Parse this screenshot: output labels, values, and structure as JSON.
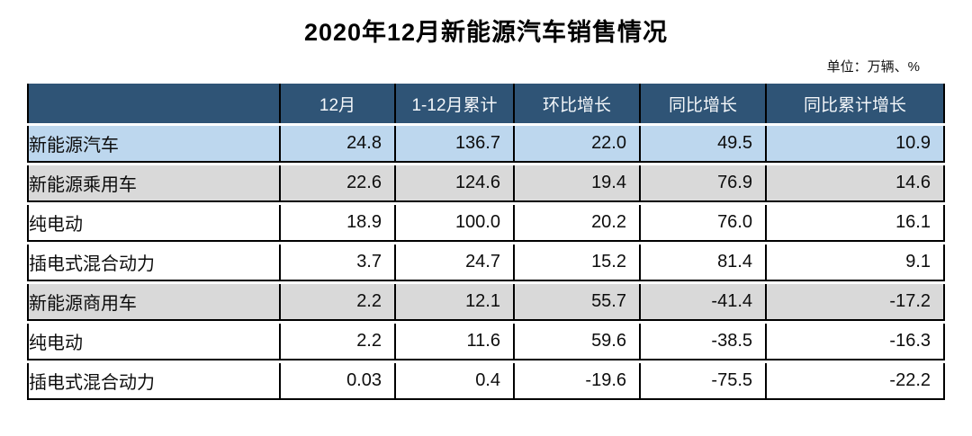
{
  "title": "2020年12月新能源汽车销售情况",
  "unit_note": "单位：万辆、%",
  "colors": {
    "header_bg": "#2F5476",
    "header_text": "#F4F7FA",
    "row_blue": "#BDD7EE",
    "row_gray": "#D9D9D9",
    "row_white": "#FFFFFF",
    "border": "#000000"
  },
  "table": {
    "columns": [
      "",
      "12月",
      "1-12月累计",
      "环比增长",
      "同比增长",
      "同比累计增长"
    ],
    "rows": [
      {
        "label": "新能源汽车",
        "indent": 1,
        "style": "blue",
        "values": [
          "24.8",
          "136.7",
          "22.0",
          "49.5",
          "10.9"
        ]
      },
      {
        "label": "新能源乘用车",
        "indent": 2,
        "style": "gray",
        "values": [
          "22.6",
          "124.6",
          "19.4",
          "76.9",
          "14.6"
        ]
      },
      {
        "label": "纯电动",
        "indent": 3,
        "style": "white",
        "values": [
          "18.9",
          "100.0",
          "20.2",
          "76.0",
          "16.1"
        ]
      },
      {
        "label": "插电式混合动力",
        "indent": 3,
        "style": "white",
        "values": [
          "3.7",
          "24.7",
          "15.2",
          "81.4",
          "9.1"
        ]
      },
      {
        "label": "新能源商用车",
        "indent": 2,
        "style": "gray",
        "values": [
          "2.2",
          "12.1",
          "55.7",
          "-41.4",
          "-17.2"
        ]
      },
      {
        "label": "纯电动",
        "indent": 3,
        "style": "white",
        "values": [
          "2.2",
          "11.6",
          "59.6",
          "-38.5",
          "-16.3"
        ]
      },
      {
        "label": "插电式混合动力",
        "indent": 3,
        "style": "white",
        "values": [
          "0.03",
          "0.4",
          "-19.6",
          "-75.5",
          "-22.2"
        ]
      }
    ]
  },
  "chart_data": {
    "type": "table",
    "title": "2020年12月新能源汽车销售情况",
    "unit": "万辆、%",
    "columns": [
      "12月",
      "1-12月累计",
      "环比增长",
      "同比增长",
      "同比累计增长"
    ],
    "rows": [
      {
        "category": "新能源汽车",
        "level": 1,
        "values": [
          24.8,
          136.7,
          22.0,
          49.5,
          10.9
        ]
      },
      {
        "category": "新能源乘用车",
        "level": 2,
        "values": [
          22.6,
          124.6,
          19.4,
          76.9,
          14.6
        ]
      },
      {
        "category": "纯电动",
        "level": 3,
        "values": [
          18.9,
          100.0,
          20.2,
          76.0,
          16.1
        ]
      },
      {
        "category": "插电式混合动力",
        "level": 3,
        "values": [
          3.7,
          24.7,
          15.2,
          81.4,
          9.1
        ]
      },
      {
        "category": "新能源商用车",
        "level": 2,
        "values": [
          2.2,
          12.1,
          55.7,
          -41.4,
          -17.2
        ]
      },
      {
        "category": "纯电动",
        "level": 3,
        "values": [
          2.2,
          11.6,
          59.6,
          -38.5,
          -16.3
        ]
      },
      {
        "category": "插电式混合动力",
        "level": 3,
        "values": [
          0.03,
          0.4,
          -19.6,
          -75.5,
          -22.2
        ]
      }
    ]
  }
}
